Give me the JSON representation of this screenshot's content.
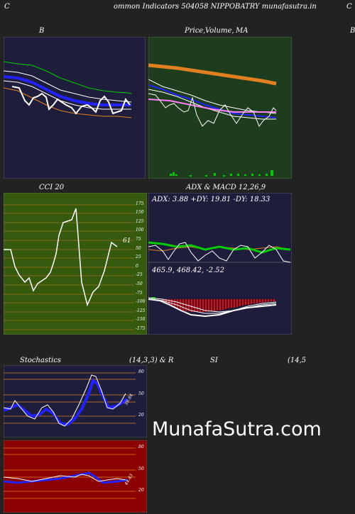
{
  "header": {
    "left_char": "C",
    "title": "ommon  Indicators 504058  NIPPOBATRY munafasutra.in",
    "right_char": "C"
  },
  "panels": {
    "bollinger": {
      "label": "B"
    },
    "price": {
      "label_a": "Price,",
      "label_b": "Volume,",
      "label_c": "MA",
      "right_char": "B"
    },
    "cci": {
      "label": "CCI 20",
      "value": "61",
      "ticks": [
        "175",
        "150",
        "125",
        "100",
        "75",
        "50",
        "25",
        "0",
        "-25",
        "-50",
        "-75",
        "-100",
        "-125",
        "-150",
        "-175"
      ]
    },
    "adx_macd": {
      "label": "ADX  & MACD 12,26,9",
      "adx_text": "ADX: 3.88  +DY: 19.81 -DY: 18.33",
      "macd_text": "465.9,  468.42,  -2.52"
    },
    "stochastics": {
      "label_a": "Stochastics",
      "label_b": "(14,3,3) & R",
      "value": "59.84",
      "ticks": [
        "80",
        "50",
        "20"
      ]
    },
    "rsi": {
      "label_a": "SI",
      "label_b": "(14,5",
      "value": "44.43",
      "ticks": [
        "80",
        "50",
        "20"
      ]
    }
  },
  "watermark": "MunafaSutra.com",
  "colors": {
    "page_bg": "#222222",
    "navy_bg": "#1e1e3c",
    "green_bg": "#1e3c1e",
    "olive_bg": "#355a0e",
    "maroon_bg": "#8b0000"
  }
}
